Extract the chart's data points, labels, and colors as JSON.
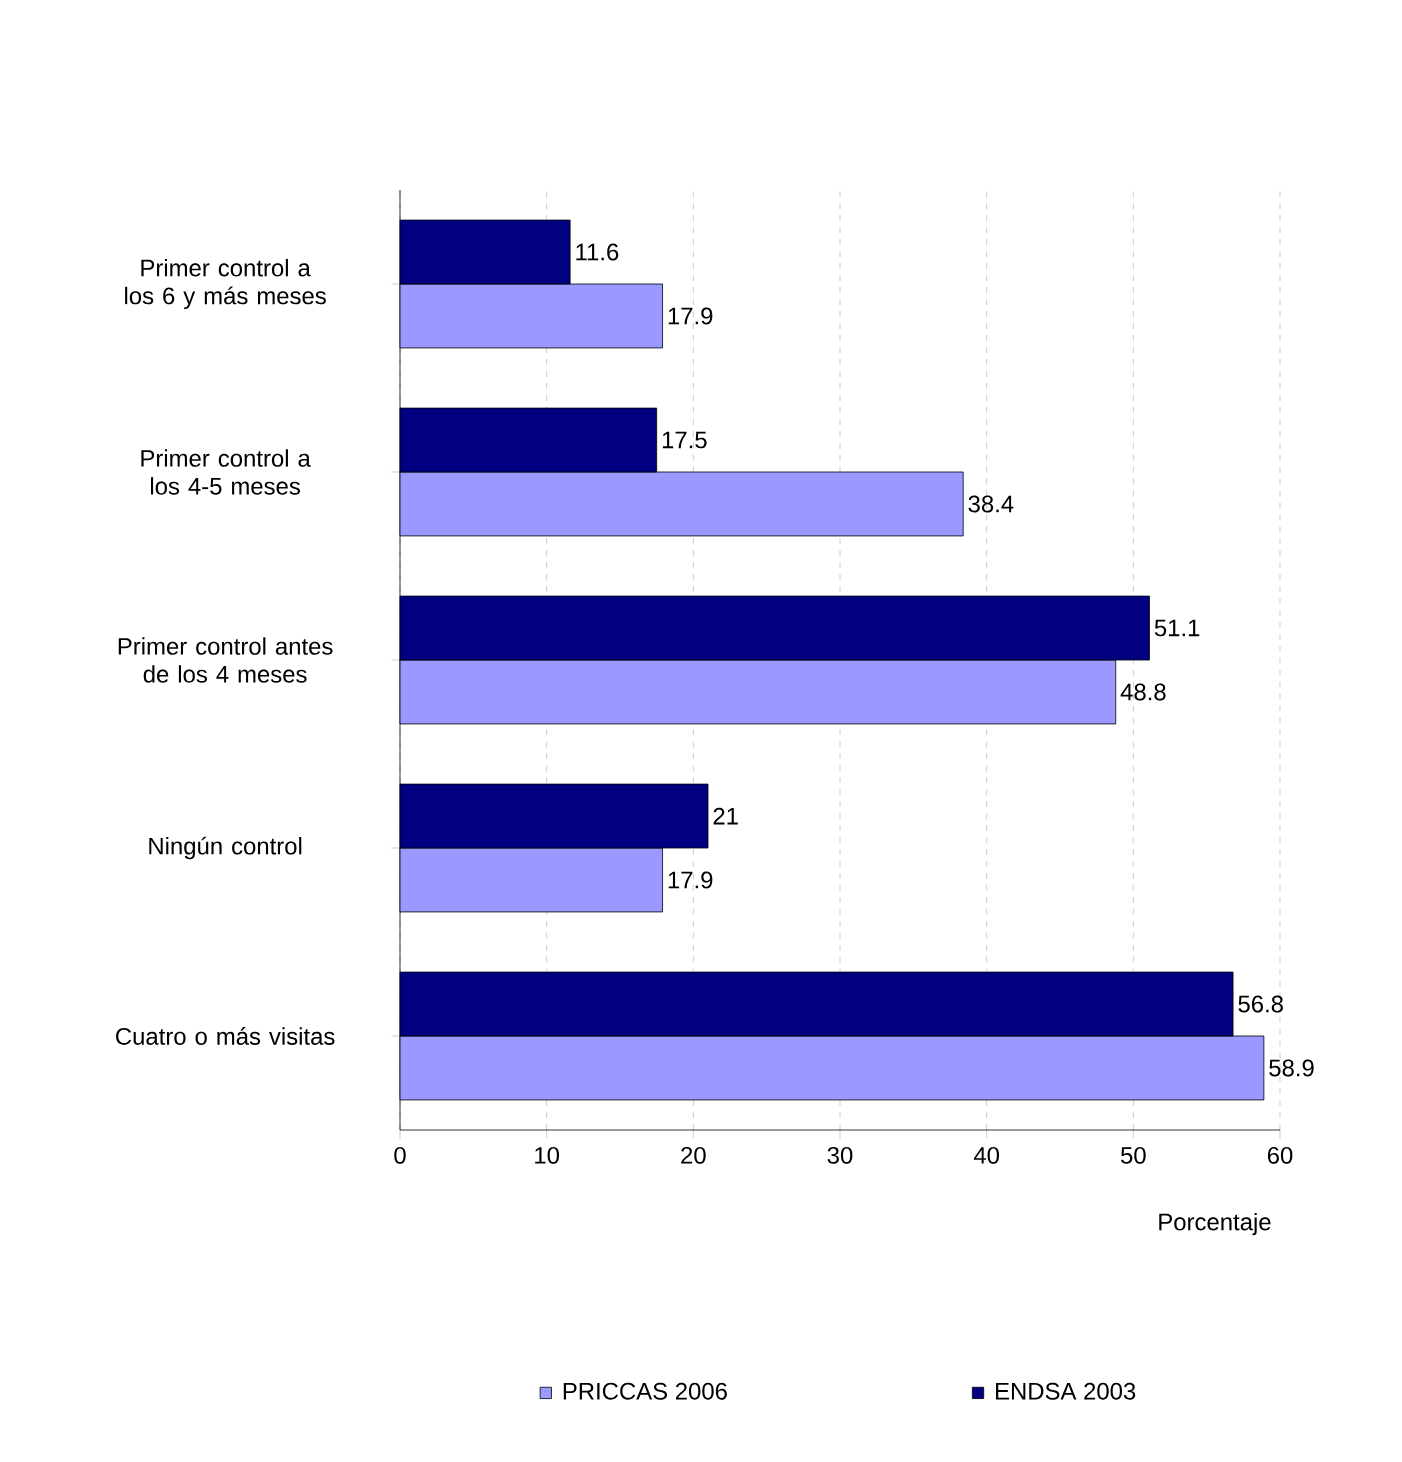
{
  "chart_data": {
    "type": "bar",
    "orientation": "horizontal",
    "xlabel": "Porcentaje",
    "categories": [
      "Primer control a los 6 y más meses",
      "Primer control a los 4-5 meses",
      "Primer control antes de los 4 meses",
      "Ningún control",
      "Cuatro o más visitas"
    ],
    "series": [
      {
        "name": "PRICCAS 2006",
        "color": "#9999ff",
        "values": [
          17.9,
          38.4,
          48.8,
          17.9,
          58.9
        ]
      },
      {
        "name": "ENDSA 2003",
        "color": "#000080",
        "values": [
          11.6,
          17.5,
          51.1,
          21,
          56.8
        ]
      }
    ],
    "xlim": [
      0,
      60
    ],
    "xticks": [
      0,
      10,
      20,
      30,
      40,
      50,
      60
    ],
    "grid": "x",
    "legend": "bottom",
    "data_labels": true
  }
}
